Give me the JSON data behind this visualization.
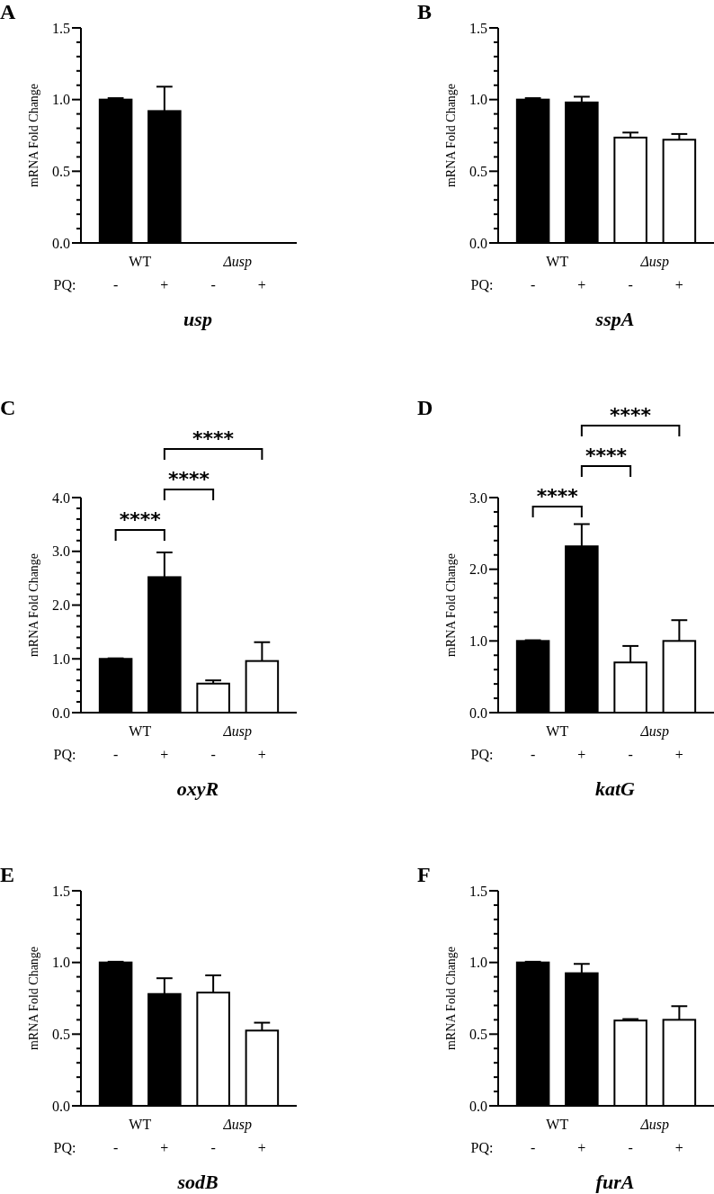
{
  "chart_data": [
    {
      "type": "bar",
      "title": "A",
      "xlabel": "usp",
      "ylabel": "mRNA Fold Change",
      "categories": [
        "-",
        "+",
        "-",
        "+"
      ],
      "values": [
        1.0,
        0.92,
        0,
        0
      ],
      "colors": [
        "#000000",
        "#000000",
        "#ffffff",
        "#ffffff"
      ],
      "errors": [
        [
          1.0,
          1.01
        ],
        [
          0.92,
          1.09
        ],
        null,
        null
      ],
      "ylim": [
        0,
        1.5
      ],
      "yticks": [
        {
          "value": 0,
          "label": "0.0"
        },
        {
          "value": 0.1,
          "label": null
        },
        {
          "value": 0.2,
          "label": null
        },
        {
          "value": 0.3,
          "label": null
        },
        {
          "value": 0.4,
          "label": null
        },
        {
          "value": 0.5,
          "label": "0.5"
        },
        {
          "value": 0.6,
          "label": null
        },
        {
          "value": 0.7,
          "label": null
        },
        {
          "value": 0.8,
          "label": null
        },
        {
          "value": 0.9,
          "label": null
        },
        {
          "value": 1.0,
          "label": "1.0"
        },
        {
          "value": 1.1,
          "label": null
        },
        {
          "value": 1.2,
          "label": null
        },
        {
          "value": 1.3,
          "label": null
        },
        {
          "value": 1.4,
          "label": null
        },
        {
          "value": 1.5,
          "label": "1.5"
        }
      ],
      "annotations": [
        "WT",
        "Δusp",
        "PQ:"
      ]
    },
    {
      "type": "bar",
      "title": "B",
      "xlabel": "sspA",
      "ylabel": "mRNA Fold Change",
      "categories": [
        "-",
        "+",
        "-",
        "+"
      ],
      "values": [
        1.0,
        0.98,
        0.735,
        0.72
      ],
      "colors": [
        "#000000",
        "#000000",
        "#ffffff",
        "#ffffff"
      ],
      "errors": [
        [
          1.0,
          1.01
        ],
        [
          0.98,
          1.02
        ],
        [
          0.735,
          0.77
        ],
        [
          0.72,
          0.76
        ]
      ],
      "ylim": [
        0,
        1.5
      ],
      "yticks": [
        {
          "value": 0,
          "label": "0.0"
        },
        {
          "value": 0.1,
          "label": null
        },
        {
          "value": 0.2,
          "label": null
        },
        {
          "value": 0.3,
          "label": null
        },
        {
          "value": 0.4,
          "label": null
        },
        {
          "value": 0.5,
          "label": "0.5"
        },
        {
          "value": 0.6,
          "label": null
        },
        {
          "value": 0.7,
          "label": null
        },
        {
          "value": 0.8,
          "label": null
        },
        {
          "value": 0.9,
          "label": null
        },
        {
          "value": 1.0,
          "label": "1.0"
        },
        {
          "value": 1.1,
          "label": null
        },
        {
          "value": 1.2,
          "label": null
        },
        {
          "value": 1.3,
          "label": null
        },
        {
          "value": 1.4,
          "label": null
        },
        {
          "value": 1.5,
          "label": "1.5"
        }
      ],
      "annotations": [
        "WT",
        "Δusp",
        "PQ:"
      ]
    },
    {
      "type": "bar",
      "title": "C",
      "xlabel": "oxyR",
      "ylabel": "mRNA Fold Change",
      "categories": [
        "-",
        "+",
        "-",
        "+"
      ],
      "values": [
        1.0,
        2.52,
        0.54,
        0.96
      ],
      "colors": [
        "#000000",
        "#000000",
        "#ffffff",
        "#ffffff"
      ],
      "errors": [
        [
          1.0,
          1.01
        ],
        [
          2.52,
          2.98
        ],
        [
          0.54,
          0.6
        ],
        [
          0.96,
          1.31
        ]
      ],
      "ylim": [
        0,
        4
      ],
      "yticks": [
        {
          "value": 0,
          "label": "0.0"
        },
        {
          "value": 0.2,
          "label": null
        },
        {
          "value": 0.4,
          "label": null
        },
        {
          "value": 0.6,
          "label": null
        },
        {
          "value": 0.8,
          "label": null
        },
        {
          "value": 1,
          "label": "1.0"
        },
        {
          "value": 1.2,
          "label": null
        },
        {
          "value": 1.4,
          "label": null
        },
        {
          "value": 1.6,
          "label": null
        },
        {
          "value": 1.8,
          "label": null
        },
        {
          "value": 2,
          "label": "2.0"
        },
        {
          "value": 2.2,
          "label": null
        },
        {
          "value": 2.4,
          "label": null
        },
        {
          "value": 2.6,
          "label": null
        },
        {
          "value": 2.8,
          "label": null
        },
        {
          "value": 3,
          "label": "3.0"
        },
        {
          "value": 3.2,
          "label": null
        },
        {
          "value": 3.4,
          "label": null
        },
        {
          "value": 3.6,
          "label": null
        },
        {
          "value": 3.8,
          "label": null
        },
        {
          "value": 4,
          "label": "4.0"
        }
      ],
      "annotations": [
        "WT",
        "Δusp",
        "PQ:",
        "****",
        "****",
        "****"
      ]
    },
    {
      "type": "bar",
      "title": "D",
      "xlabel": "katG",
      "ylabel": "mRNA Fold Change",
      "categories": [
        "-",
        "+",
        "-",
        "+"
      ],
      "values": [
        1.0,
        2.32,
        0.7,
        1.0
      ],
      "colors": [
        "#000000",
        "#000000",
        "#ffffff",
        "#ffffff"
      ],
      "errors": [
        [
          1.0,
          1.01
        ],
        [
          2.32,
          2.63
        ],
        [
          0.7,
          0.93
        ],
        [
          1.0,
          1.29
        ]
      ],
      "ylim": [
        0,
        3
      ],
      "yticks": [
        {
          "value": 0,
          "label": "0.0"
        },
        {
          "value": 0.2,
          "label": null
        },
        {
          "value": 0.4,
          "label": null
        },
        {
          "value": 0.6,
          "label": null
        },
        {
          "value": 0.8,
          "label": null
        },
        {
          "value": 1,
          "label": "1.0"
        },
        {
          "value": 1.2,
          "label": null
        },
        {
          "value": 1.4,
          "label": null
        },
        {
          "value": 1.6,
          "label": null
        },
        {
          "value": 1.8,
          "label": null
        },
        {
          "value": 2,
          "label": "2.0"
        },
        {
          "value": 2.2,
          "label": null
        },
        {
          "value": 2.4,
          "label": null
        },
        {
          "value": 2.6,
          "label": null
        },
        {
          "value": 2.8,
          "label": null
        },
        {
          "value": 3,
          "label": "3.0"
        }
      ],
      "annotations": [
        "WT",
        "Δusp",
        "PQ:",
        "****",
        "****",
        "****"
      ]
    },
    {
      "type": "bar",
      "title": "E",
      "xlabel": "sodB",
      "ylabel": "mRNA Fold Change",
      "categories": [
        "-",
        "+",
        "-",
        "+"
      ],
      "values": [
        1.0,
        0.78,
        0.79,
        0.525
      ],
      "colors": [
        "#000000",
        "#000000",
        "#ffffff",
        "#ffffff"
      ],
      "errors": [
        [
          1.0,
          1.005
        ],
        [
          0.78,
          0.89
        ],
        [
          0.79,
          0.91
        ],
        [
          0.525,
          0.58
        ]
      ],
      "ylim": [
        0,
        1.5
      ],
      "yticks": [
        {
          "value": 0,
          "label": "0.0"
        },
        {
          "value": 0.1,
          "label": null
        },
        {
          "value": 0.2,
          "label": null
        },
        {
          "value": 0.3,
          "label": null
        },
        {
          "value": 0.4,
          "label": null
        },
        {
          "value": 0.5,
          "label": "0.5"
        },
        {
          "value": 0.6,
          "label": null
        },
        {
          "value": 0.7,
          "label": null
        },
        {
          "value": 0.8,
          "label": null
        },
        {
          "value": 0.9,
          "label": null
        },
        {
          "value": 1.0,
          "label": "1.0"
        },
        {
          "value": 1.1,
          "label": null
        },
        {
          "value": 1.2,
          "label": null
        },
        {
          "value": 1.3,
          "label": null
        },
        {
          "value": 1.4,
          "label": null
        },
        {
          "value": 1.5,
          "label": "1.5"
        }
      ],
      "annotations": [
        "WT",
        "Δusp",
        "PQ:"
      ]
    },
    {
      "type": "bar",
      "title": "F",
      "xlabel": "furA",
      "ylabel": "mRNA Fold Change",
      "categories": [
        "-",
        "+",
        "-",
        "+"
      ],
      "values": [
        1.0,
        0.925,
        0.595,
        0.6
      ],
      "colors": [
        "#000000",
        "#000000",
        "#ffffff",
        "#ffffff"
      ],
      "errors": [
        [
          1.0,
          1.005
        ],
        [
          0.925,
          0.99
        ],
        [
          0.595,
          0.605
        ],
        [
          0.6,
          0.695
        ]
      ],
      "ylim": [
        0,
        1.5
      ],
      "yticks": [
        {
          "value": 0,
          "label": "0.0"
        },
        {
          "value": 0.1,
          "label": null
        },
        {
          "value": 0.2,
          "label": null
        },
        {
          "value": 0.3,
          "label": null
        },
        {
          "value": 0.4,
          "label": null
        },
        {
          "value": 0.5,
          "label": "0.5"
        },
        {
          "value": 0.6,
          "label": null
        },
        {
          "value": 0.7,
          "label": null
        },
        {
          "value": 0.8,
          "label": null
        },
        {
          "value": 0.9,
          "label": null
        },
        {
          "value": 1.0,
          "label": "1.0"
        },
        {
          "value": 1.1,
          "label": null
        },
        {
          "value": 1.2,
          "label": null
        },
        {
          "value": 1.3,
          "label": null
        },
        {
          "value": 1.4,
          "label": null
        },
        {
          "value": 1.5,
          "label": "1.5"
        }
      ],
      "annotations": [
        "WT",
        "Δusp",
        "PQ:"
      ]
    }
  ]
}
